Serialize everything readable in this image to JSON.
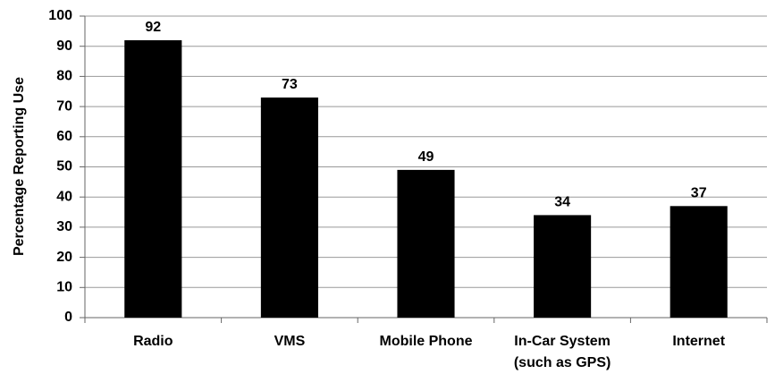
{
  "chart_data": {
    "type": "bar",
    "y_label": "Percentage Reporting Use",
    "categories": [
      "Radio",
      "VMS",
      "Mobile Phone",
      "In-Car System (such as GPS)",
      "Internet"
    ],
    "values": [
      92,
      73,
      49,
      34,
      37
    ],
    "color": "#000000",
    "ylim": [
      0,
      100
    ],
    "yticks": [
      0,
      10,
      20,
      30,
      40,
      50,
      60,
      70,
      80,
      90,
      100
    ],
    "grid": true
  }
}
